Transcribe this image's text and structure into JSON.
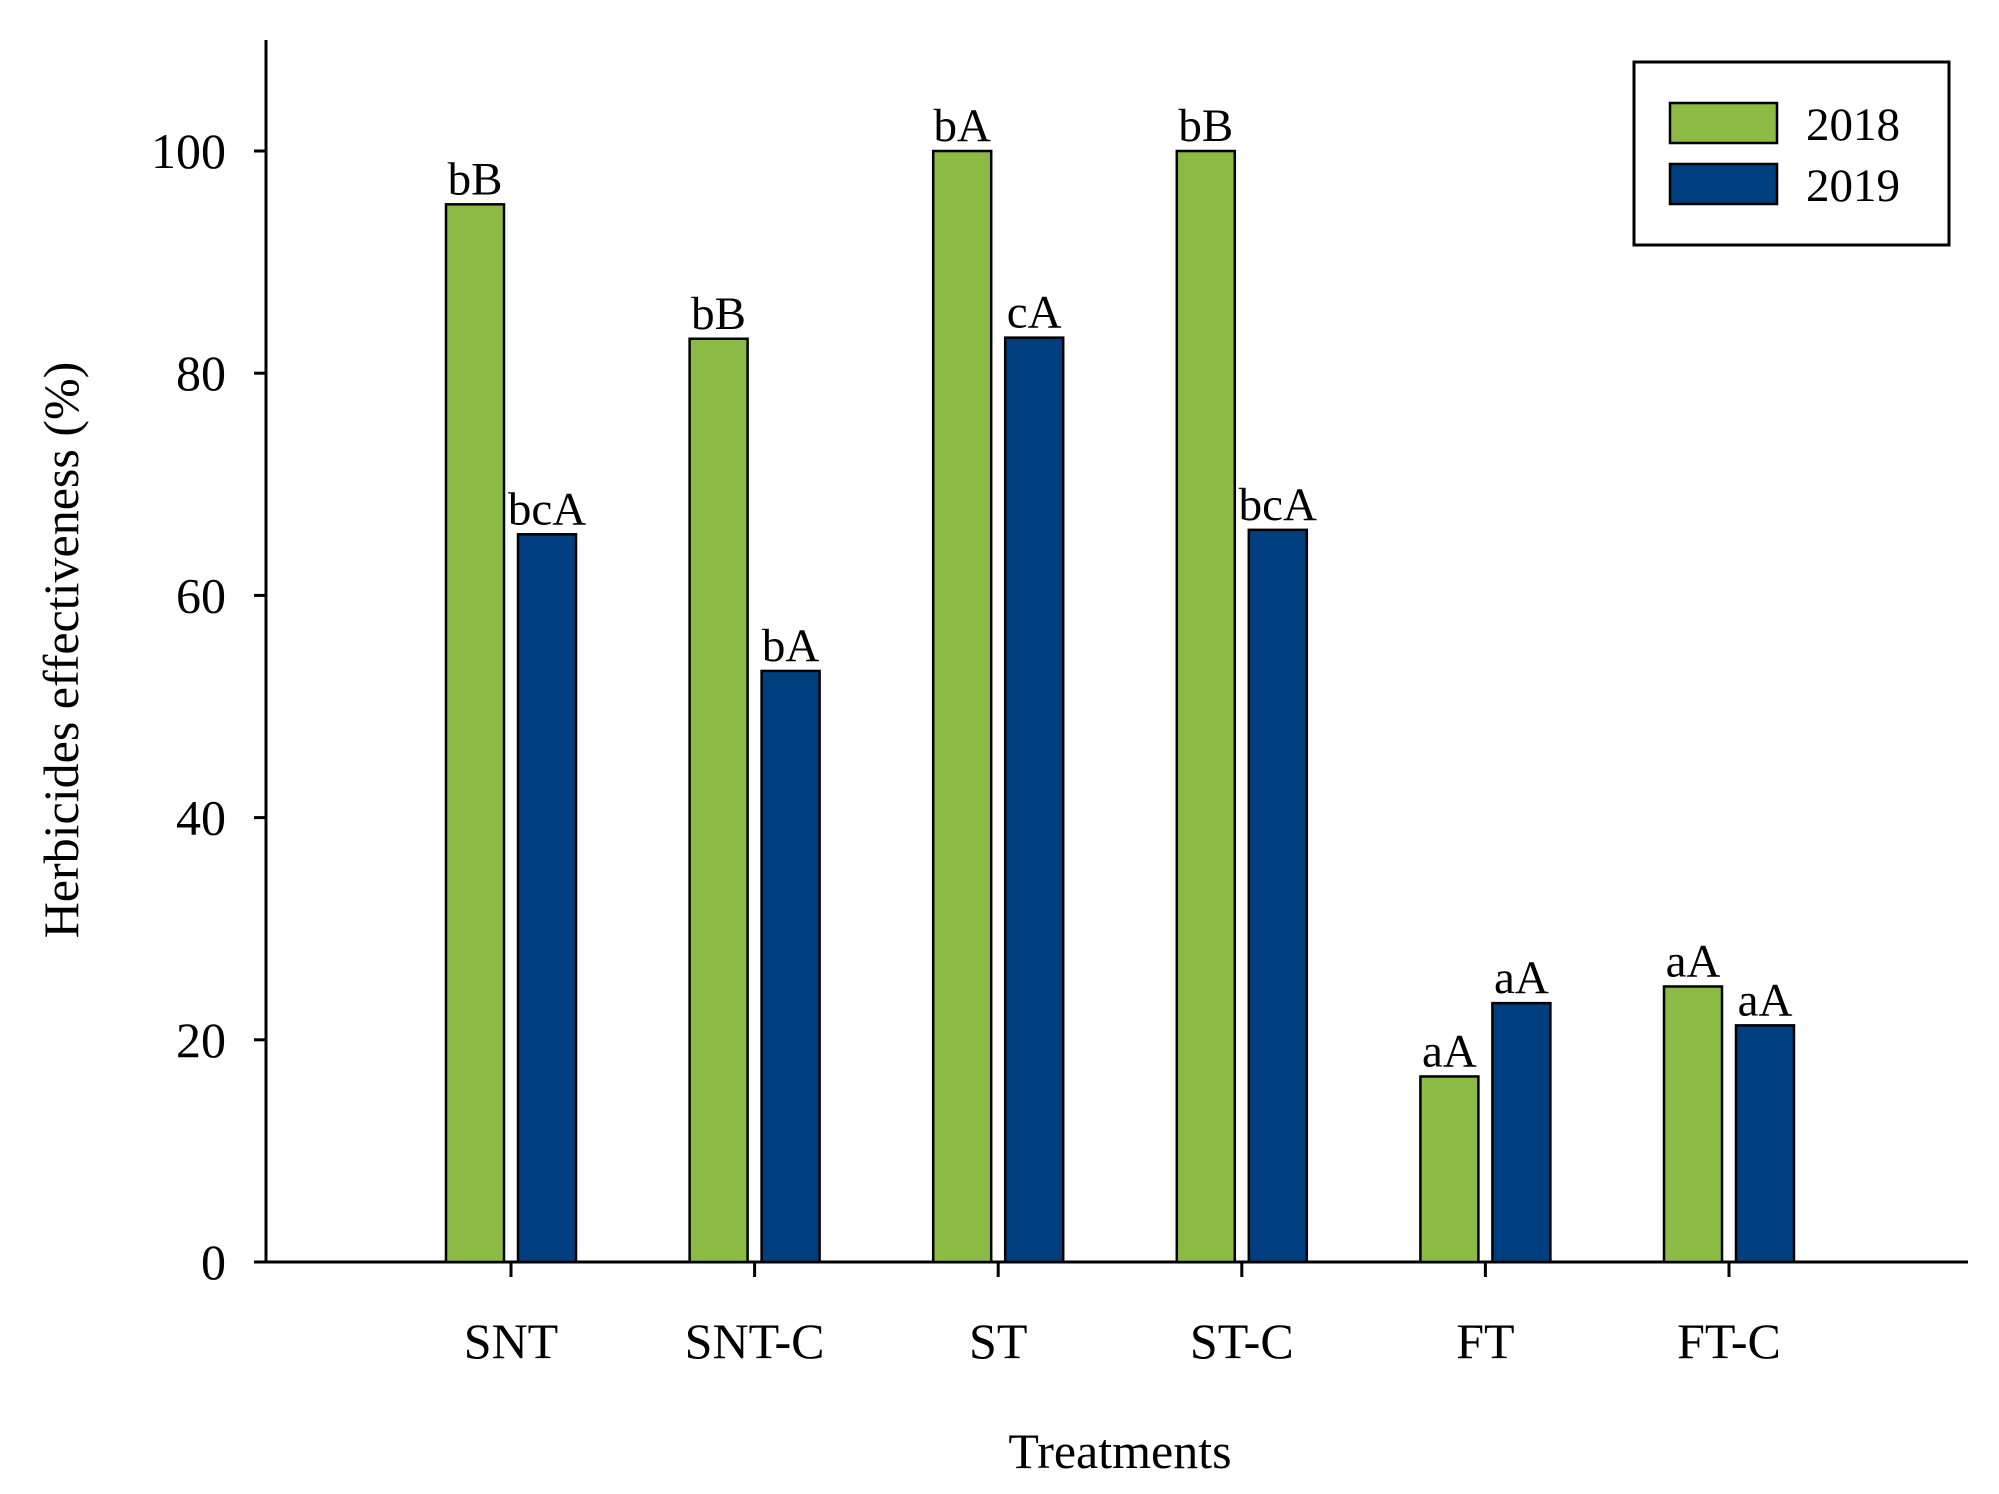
{
  "chart_data": {
    "type": "bar",
    "title": "",
    "xlabel": "Treatments",
    "ylabel": "Herbicides effectiveness (%)",
    "ylim": [
      0,
      110
    ],
    "yticks": [
      0,
      20,
      40,
      60,
      80,
      100
    ],
    "grid": false,
    "legend_position": "top-right",
    "categories": [
      "SNT",
      "SNT-C",
      "ST",
      "ST-C",
      "FT",
      "FT-C"
    ],
    "series": [
      {
        "name": "2018",
        "color": "#8BBB45",
        "values": [
          95.2,
          83.1,
          100,
          100,
          16.7,
          24.8
        ],
        "labels": [
          "bB",
          "bB",
          "bA",
          "bB",
          "aA",
          "aA"
        ]
      },
      {
        "name": "2019",
        "color": "#003F7F",
        "values": [
          65.5,
          53.2,
          83.2,
          65.9,
          23.3,
          21.3
        ],
        "labels": [
          "bcA",
          "bA",
          "cA",
          "bcA",
          "aA",
          "aA"
        ]
      }
    ]
  }
}
